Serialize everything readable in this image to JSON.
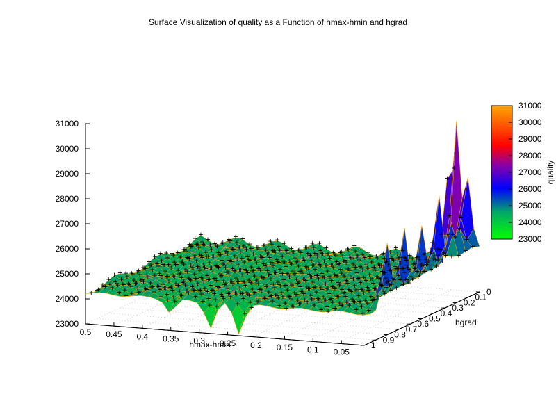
{
  "chart_data": {
    "type": "surface",
    "title": "Surface Visualization of quality as a Function of hmax-hmin and hgrad",
    "xlabel": "hmax-hmin",
    "ylabel": "hgrad",
    "zlabel": "quality",
    "x_ticks": [
      "0.5",
      "0.45",
      "0.4",
      "0.35",
      "0.3",
      "0.25",
      "0.2",
      "0.15",
      "0.1",
      "0.05"
    ],
    "y_ticks": [
      "0",
      "0.1",
      "0.2",
      "0.3",
      "0.4",
      "0.5",
      "0.6",
      "0.7",
      "0.8",
      "0.9",
      "1"
    ],
    "z_ticks": [
      "23000",
      "24000",
      "25000",
      "26000",
      "27000",
      "28000",
      "29000",
      "30000",
      "31000"
    ],
    "colorbar_ticks": [
      "23000",
      "24000",
      "25000",
      "26000",
      "27000",
      "28000",
      "29000",
      "30000",
      "31000"
    ],
    "xlim": [
      0.5,
      0.01
    ],
    "ylim": [
      0,
      1
    ],
    "zlim": [
      23000,
      31000
    ],
    "grid": true,
    "colormap": [
      "#00ff00",
      "#0000ff",
      "#ff0000",
      "#ffa500"
    ],
    "base_quality": 24250,
    "peaks": [
      {
        "hmax_hmin": 0.04,
        "hgrad": 0.1,
        "quality": 28600
      },
      {
        "hmax_hmin": 0.01,
        "hgrad": 0.2,
        "quality": 30050
      },
      {
        "hmax_hmin": 0.01,
        "hgrad": 0.35,
        "quality": 27200
      },
      {
        "hmax_hmin": 0.01,
        "hgrad": 0.5,
        "quality": 26600
      },
      {
        "hmax_hmin": 0.01,
        "hgrad": 0.65,
        "quality": 26800
      },
      {
        "hmax_hmin": 0.01,
        "hgrad": 0.8,
        "quality": 26500
      },
      {
        "hmax_hmin": 0.01,
        "hgrad": 0.1,
        "quality": 27400
      }
    ],
    "dips": [
      {
        "hmax_hmin": 0.28,
        "hgrad": 1,
        "quality": 23200
      },
      {
        "hmax_hmin": 0.23,
        "hgrad": 1,
        "quality": 23100
      },
      {
        "hmax_hmin": 0.35,
        "hgrad": 1,
        "quality": 23700
      }
    ]
  }
}
